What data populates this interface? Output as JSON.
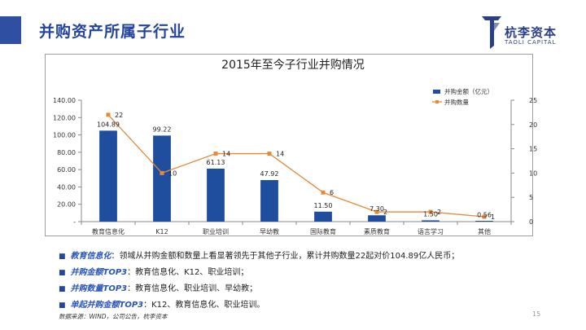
{
  "slide": {
    "title": "并购资产所属子行业",
    "page_number": "15",
    "source": "数据来源：WIND，公司公告，杭李资本"
  },
  "logo": {
    "name_cn": "杭李资本",
    "name_en": "TAOLI CAPITAL"
  },
  "colors": {
    "accent": "#2f4fa3",
    "bar": "#1f4e9e",
    "line": "#e48a3a"
  },
  "chart_data": {
    "type": "bar",
    "title": "2015年至今子行业并购情况",
    "categories": [
      "教育信息化",
      "K12",
      "职业培训",
      "早幼教",
      "国际教育",
      "素质教育",
      "语言学习",
      "其他"
    ],
    "series": [
      {
        "name": "并购金额（亿元）",
        "type": "bar",
        "axis": "left",
        "values": [
          104.89,
          99.22,
          61.13,
          47.92,
          11.5,
          7.3,
          1.5,
          0.56
        ],
        "labels": [
          "104.89",
          "99.22",
          "61.13",
          "47.92",
          "11.50",
          "7.30",
          "1.50",
          "0.56"
        ]
      },
      {
        "name": "并购数量",
        "type": "line",
        "axis": "right",
        "values": [
          22,
          10,
          14,
          14,
          6,
          2,
          2,
          1
        ],
        "labels": [
          "22",
          "10",
          "14",
          "14",
          "6",
          "2",
          "2",
          "1"
        ]
      }
    ],
    "y_left": {
      "min": 0,
      "max": 140,
      "step": 20,
      "tick_labels": [
        "-",
        "20.00",
        "40.00",
        "60.00",
        "80.00",
        "100.00",
        "120.00",
        "140.00"
      ]
    },
    "y_right": {
      "min": 0,
      "max": 25,
      "step": 5,
      "tick_labels": [
        "0",
        "5",
        "10",
        "15",
        "20",
        "25"
      ]
    },
    "grid": false,
    "legend_position": "top-right"
  },
  "notes": [
    {
      "key": "教育信息化",
      "text": "：领域从并购金额和数量上看显著领先于其他子行业，累计并购数量22起对价104.89亿人民币；"
    },
    {
      "key": "并购金额TOP3",
      "text": "：教育信息化、K12、职业培训；"
    },
    {
      "key": "并购数量TOP3",
      "text": "：教育信息化、职业培训、早幼教；"
    },
    {
      "key": "单起并购金额TOP3",
      "text": "：K12、教育信息化、职业培训。"
    }
  ],
  "bullet_glyph": "■"
}
